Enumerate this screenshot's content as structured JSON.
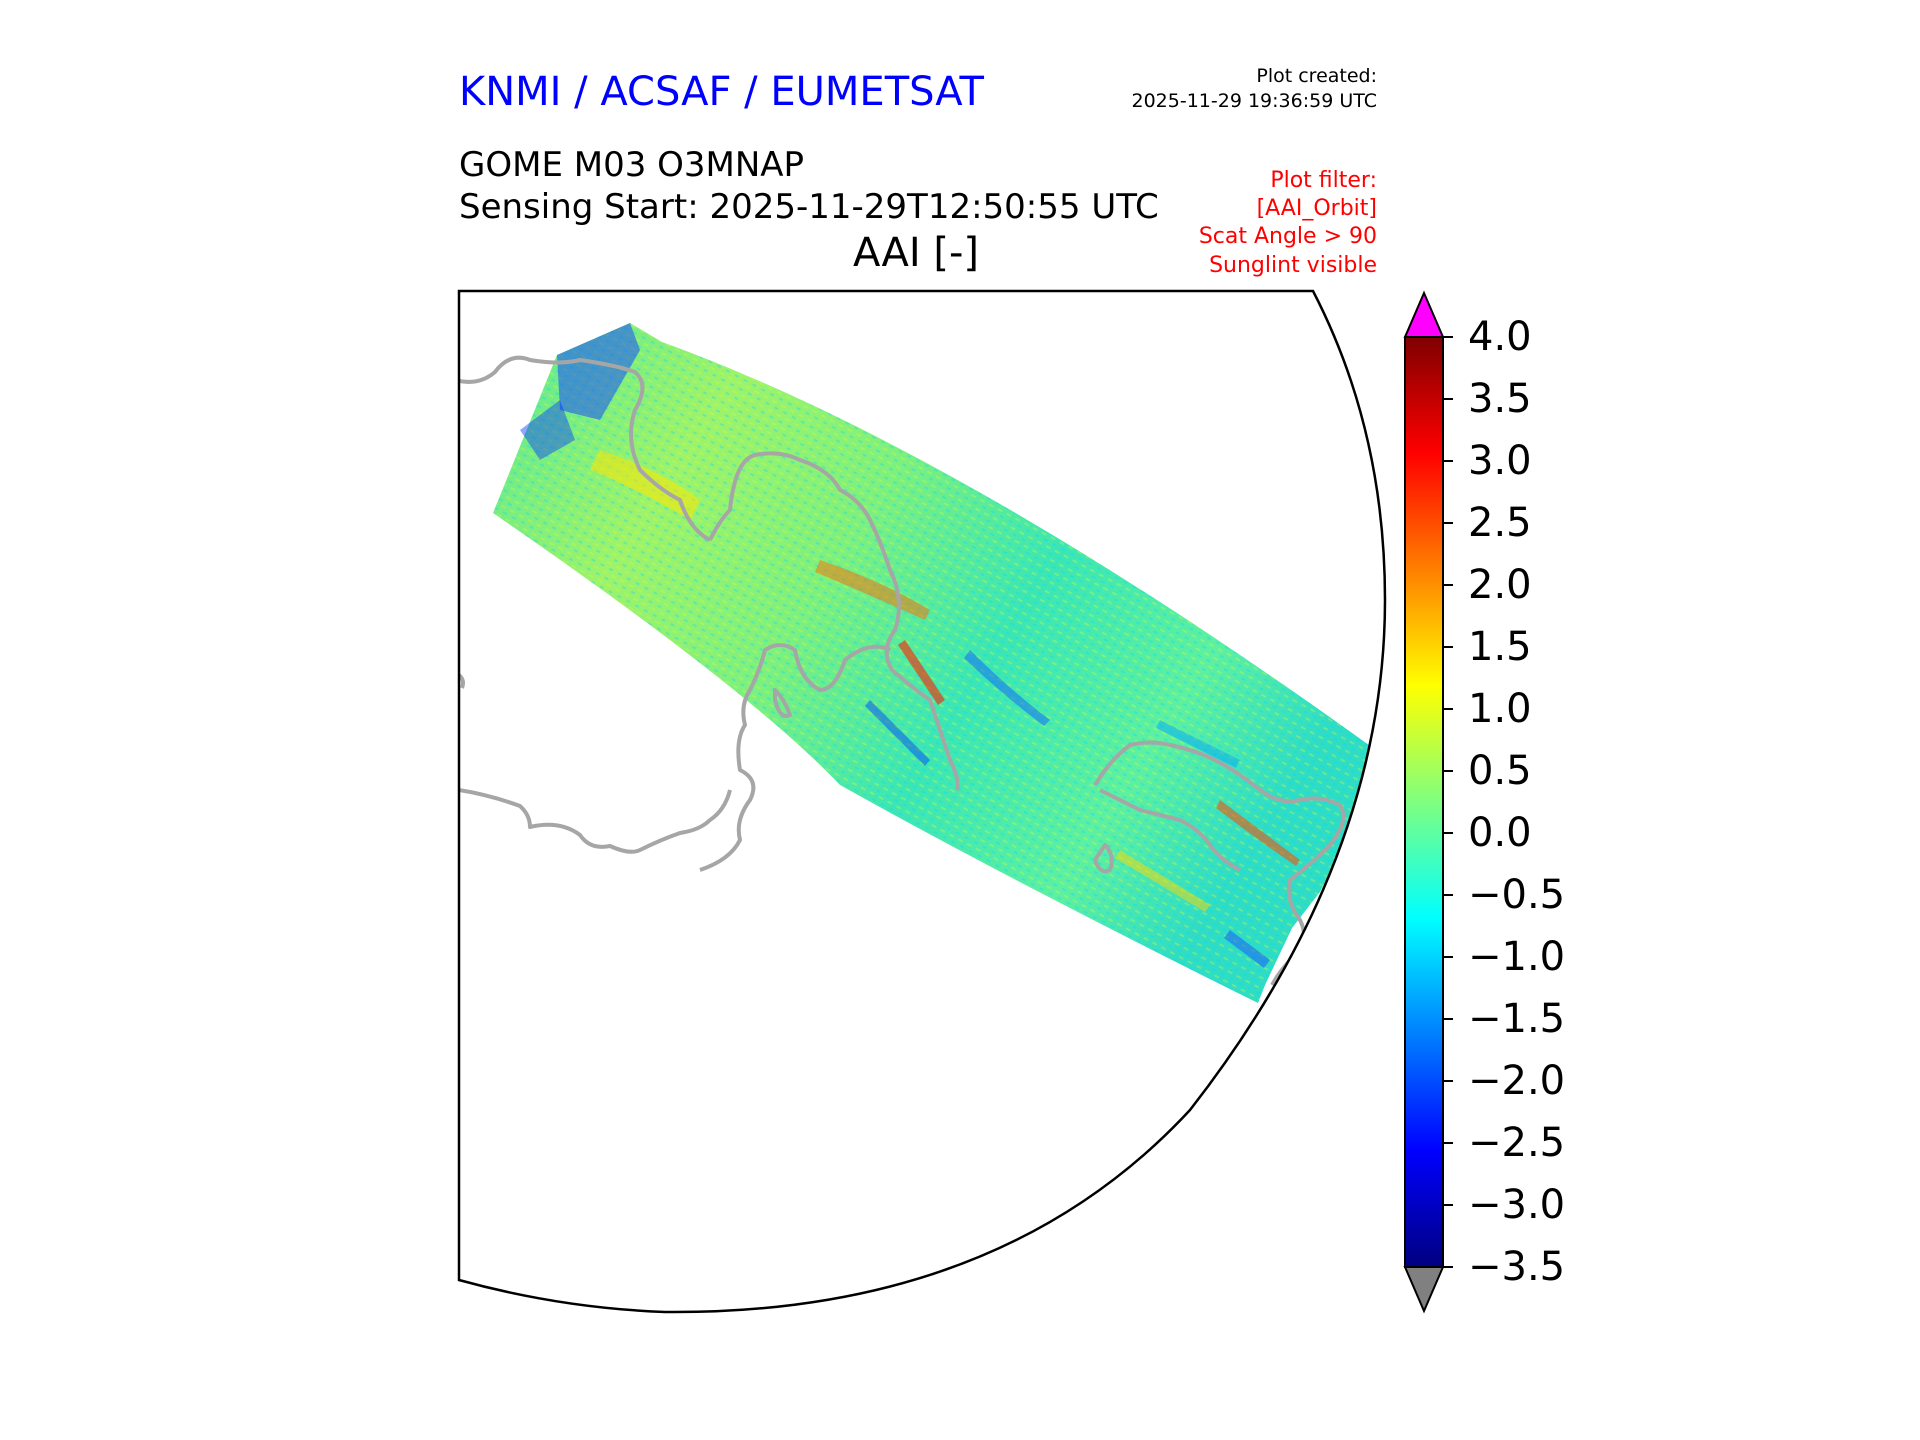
{
  "header": {
    "org_title": "KNMI / ACSAF / EUMETSAT",
    "created_label": "Plot created:",
    "created_value": "2025-11-29 19:36:59 UTC",
    "product": "GOME M03 O3MNAP",
    "sensing_start": "Sensing Start: 2025-11-29T12:50:55 UTC",
    "variable_title": "AAI [-]"
  },
  "plot_filter": [
    "Plot filter:",
    "[AAI_Orbit]",
    "Scat Angle > 90",
    "Sunglint visible"
  ],
  "colors": {
    "org_title": "#0000ff",
    "filter_text": "#ff0000",
    "coastline": "#a6a6a6",
    "over_color": "#ff00ff",
    "under_color": "#808080",
    "colormap": "jet"
  },
  "colorbar": {
    "min": -3.5,
    "max": 4.0,
    "ticks": [
      "4.0",
      "3.5",
      "3.0",
      "2.5",
      "2.0",
      "1.5",
      "1.0",
      "0.5",
      "0.0",
      "−0.5",
      "−1.0",
      "−1.5",
      "−2.0",
      "−2.5",
      "−3.0",
      "−3.5"
    ],
    "extend": "both"
  },
  "map": {
    "projection": "polar stereographic",
    "field": "AAI swath",
    "coastlines": true
  }
}
